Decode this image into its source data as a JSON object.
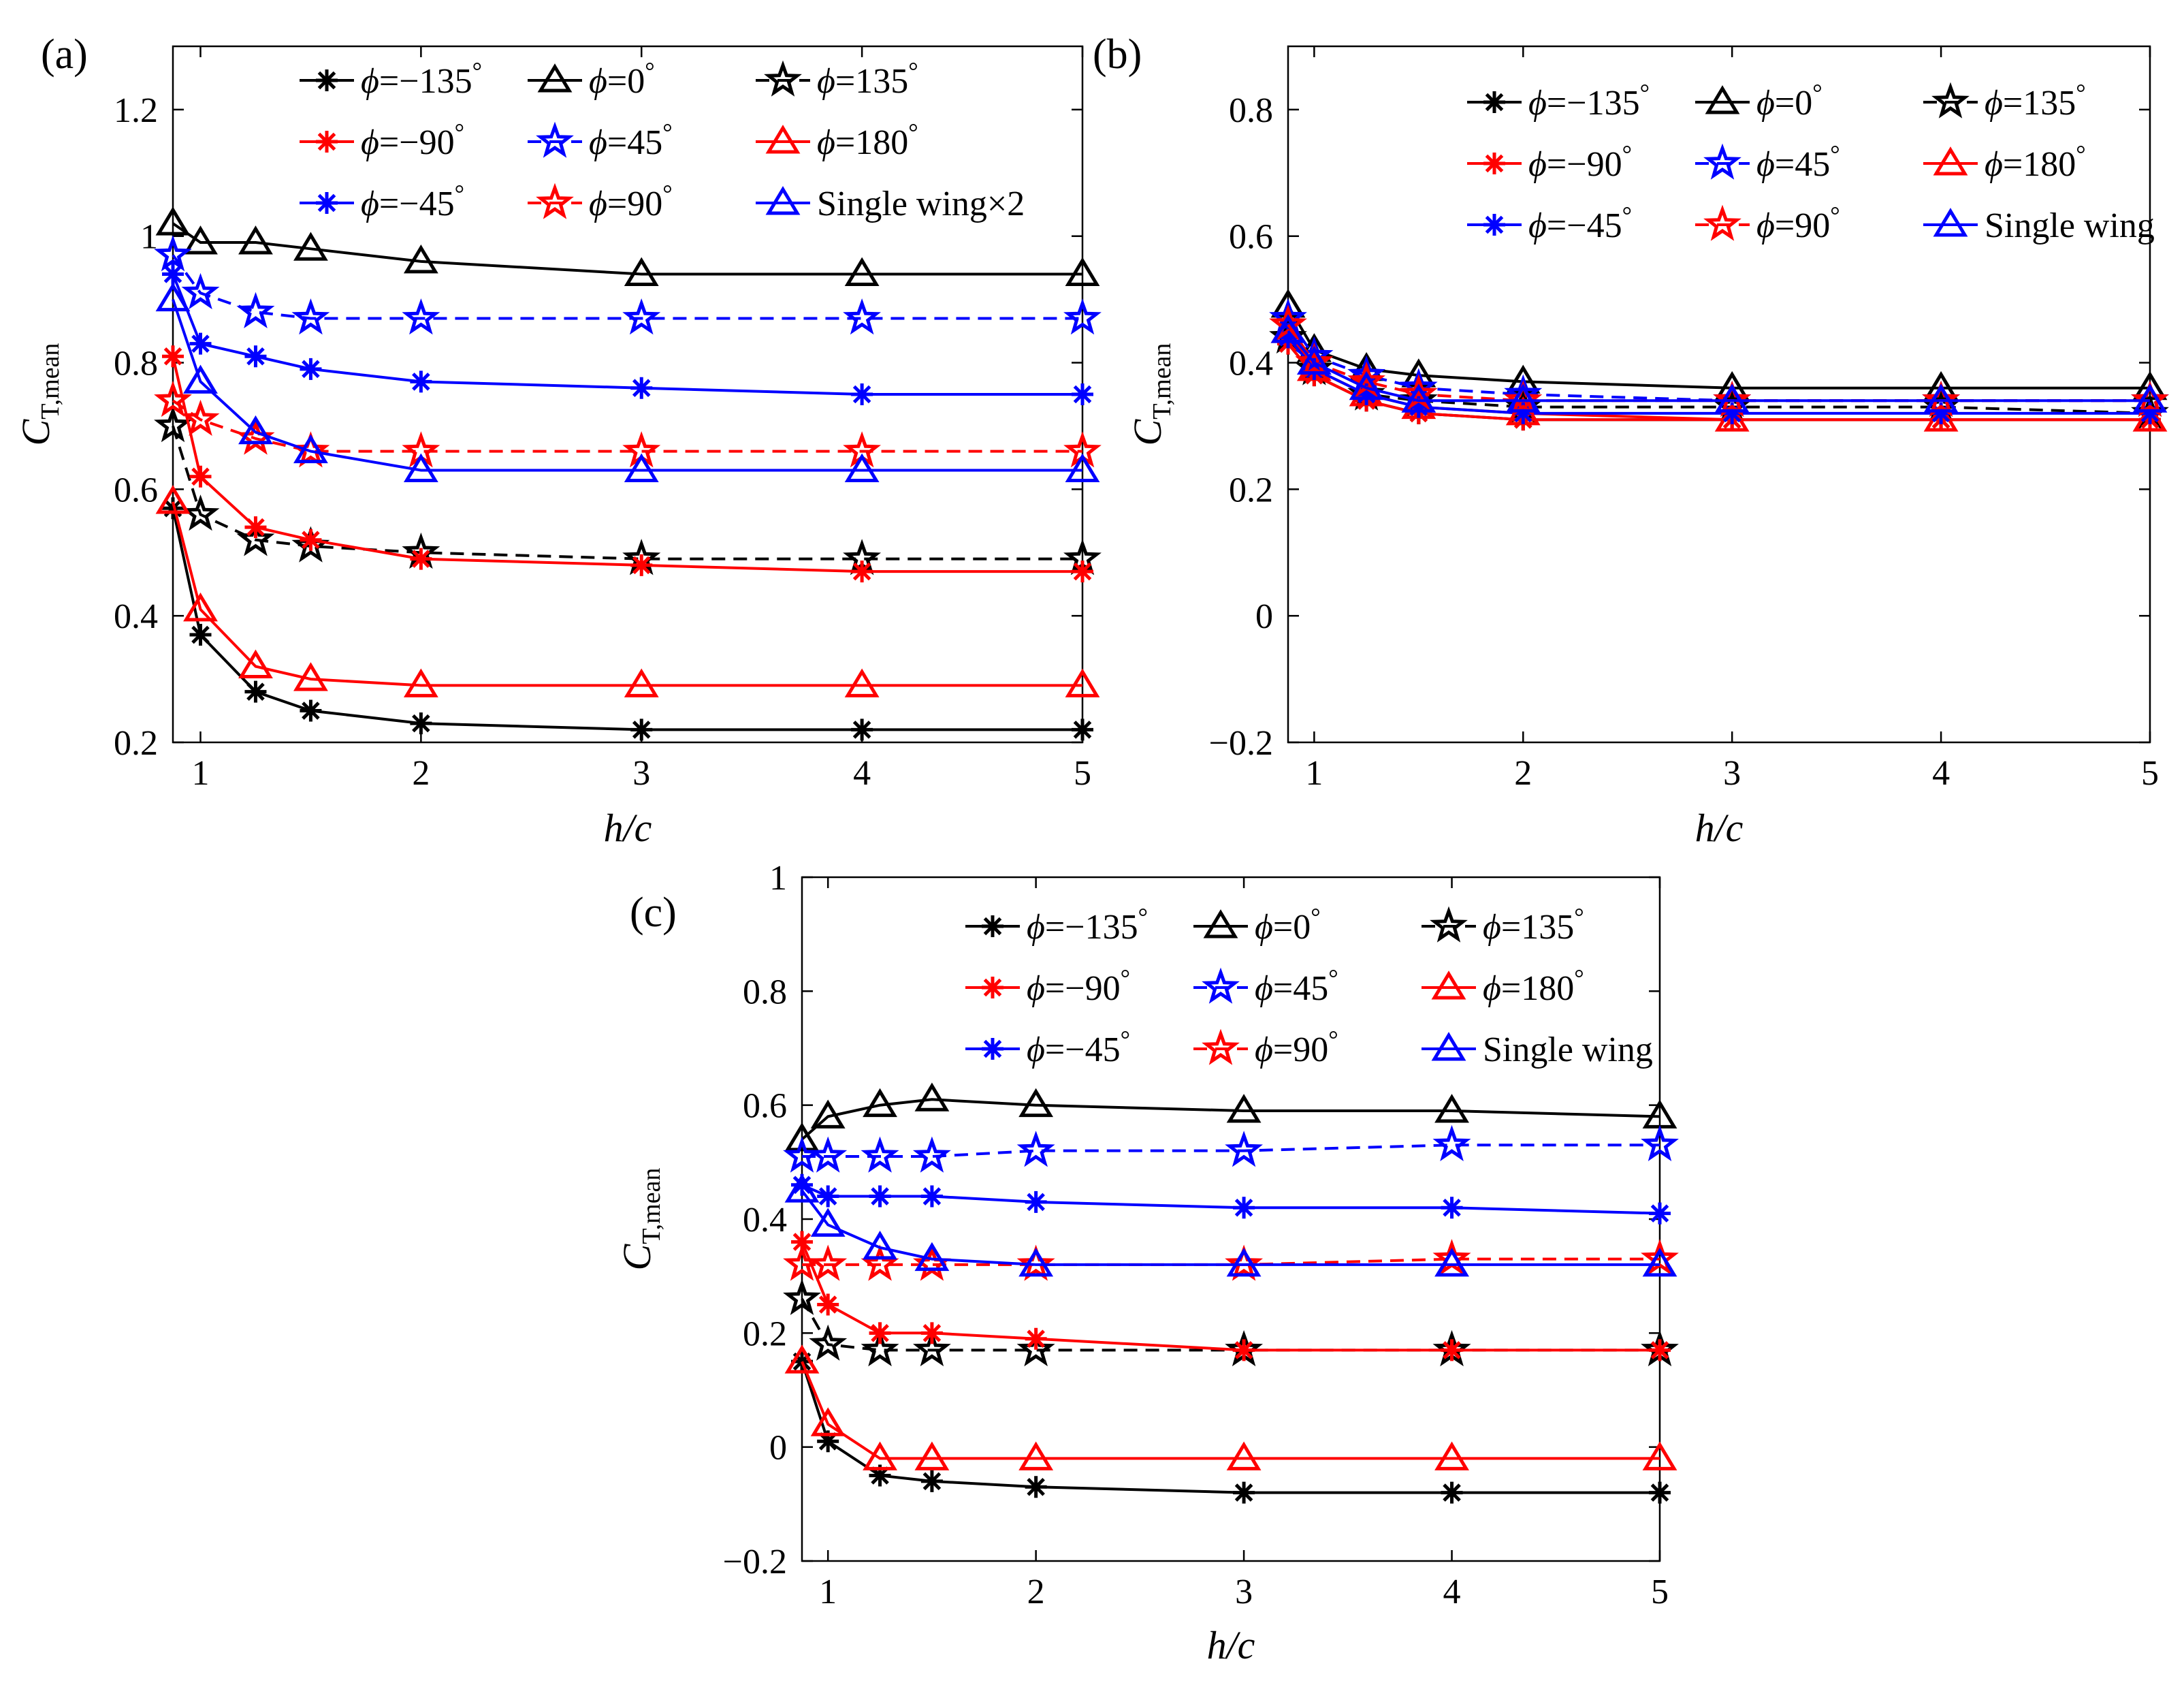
{
  "colors": {
    "black": "#000000",
    "red": "#ff0000",
    "blue": "#0000ff"
  },
  "series_styles": [
    {
      "name": "phi_m135",
      "color": "black",
      "marker": "asterisk",
      "dash": "solid"
    },
    {
      "name": "phi_0",
      "color": "black",
      "marker": "triangle",
      "dash": "solid"
    },
    {
      "name": "phi_135",
      "color": "black",
      "marker": "star",
      "dash": "dashed"
    },
    {
      "name": "phi_m90",
      "color": "red",
      "marker": "asterisk",
      "dash": "solid"
    },
    {
      "name": "phi_45",
      "color": "blue",
      "marker": "star",
      "dash": "dashed"
    },
    {
      "name": "phi_180",
      "color": "red",
      "marker": "triangle",
      "dash": "solid"
    },
    {
      "name": "phi_m45",
      "color": "blue",
      "marker": "asterisk",
      "dash": "solid"
    },
    {
      "name": "phi_90",
      "color": "red",
      "marker": "star",
      "dash": "dashed"
    },
    {
      "name": "single",
      "color": "blue",
      "marker": "triangle",
      "dash": "solid"
    }
  ],
  "legend_text": [
    {
      "prefix": "=−135",
      "deg": "°"
    },
    {
      "prefix": "=0",
      "deg": "°"
    },
    {
      "prefix": "=135",
      "deg": "°"
    },
    {
      "prefix": "=−90",
      "deg": "°"
    },
    {
      "prefix": "=45",
      "deg": "°"
    },
    {
      "prefix": "=180",
      "deg": "°"
    },
    {
      "prefix": "=−45",
      "deg": "°"
    },
    {
      "prefix": "=90",
      "deg": "°"
    }
  ],
  "phi_symbol": "ϕ",
  "chart_data": [
    {
      "type": "line",
      "panel_label": "(a)",
      "xlabel": "h/c",
      "ylabel_main": "C",
      "ylabel_sub": "T,mean",
      "xlim": [
        0.875,
        5
      ],
      "ylim": [
        0.2,
        1.3
      ],
      "xticks": [
        1,
        2,
        3,
        4,
        5
      ],
      "yticks": [
        0.2,
        0.4,
        0.6,
        0.8,
        1,
        1.2
      ],
      "ytick_labels": [
        "0.2",
        "0.4",
        "0.6",
        "0.8",
        "1",
        "1.2"
      ],
      "single_label": "Single wing×2",
      "x": [
        0.875,
        1,
        1.25,
        1.5,
        2,
        3,
        4,
        5
      ],
      "series": [
        {
          "name": "ϕ=−135°",
          "values": [
            0.57,
            0.37,
            0.28,
            0.25,
            0.23,
            0.22,
            0.22,
            0.22
          ]
        },
        {
          "name": "ϕ=0°",
          "values": [
            1.02,
            0.99,
            0.99,
            0.98,
            0.96,
            0.94,
            0.94,
            0.94
          ]
        },
        {
          "name": "ϕ=135°",
          "values": [
            0.7,
            0.56,
            0.52,
            0.51,
            0.5,
            0.49,
            0.49,
            0.49
          ]
        },
        {
          "name": "ϕ=−90°",
          "values": [
            0.81,
            0.62,
            0.54,
            0.52,
            0.49,
            0.48,
            0.47,
            0.47
          ]
        },
        {
          "name": "ϕ=45°",
          "values": [
            0.97,
            0.91,
            0.88,
            0.87,
            0.87,
            0.87,
            0.87,
            0.87
          ]
        },
        {
          "name": "ϕ=180°",
          "values": [
            0.58,
            0.41,
            0.32,
            0.3,
            0.29,
            0.29,
            0.29,
            0.29
          ]
        },
        {
          "name": "ϕ=−45°",
          "values": [
            0.94,
            0.83,
            0.81,
            0.79,
            0.77,
            0.76,
            0.75,
            0.75
          ]
        },
        {
          "name": "ϕ=90°",
          "values": [
            0.74,
            0.71,
            0.68,
            0.66,
            0.66,
            0.66,
            0.66,
            0.66
          ]
        },
        {
          "name": "Single wing×2",
          "values": [
            0.9,
            0.77,
            0.69,
            0.66,
            0.63,
            0.63,
            0.63,
            0.63
          ]
        }
      ]
    },
    {
      "type": "line",
      "panel_label": "(b)",
      "xlabel": "h/c",
      "ylabel_main": "C",
      "ylabel_sub": "T,mean",
      "xlim": [
        0.875,
        5
      ],
      "ylim": [
        -0.2,
        0.9
      ],
      "xticks": [
        1,
        2,
        3,
        4,
        5
      ],
      "yticks": [
        -0.2,
        0,
        0.2,
        0.4,
        0.6,
        0.8
      ],
      "ytick_labels": [
        "−0.2",
        "0",
        "0.2",
        "0.4",
        "0.6",
        "0.8"
      ],
      "single_label": "Single wing",
      "x": [
        0.875,
        1,
        1.25,
        1.5,
        2,
        3,
        4,
        5
      ],
      "series": [
        {
          "name": "ϕ=−135°",
          "values": [
            0.43,
            0.38,
            0.34,
            0.32,
            0.31,
            0.31,
            0.31,
            0.31
          ]
        },
        {
          "name": "ϕ=0°",
          "values": [
            0.49,
            0.42,
            0.39,
            0.38,
            0.37,
            0.36,
            0.36,
            0.36
          ]
        },
        {
          "name": "ϕ=135°",
          "values": [
            0.44,
            0.39,
            0.35,
            0.34,
            0.33,
            0.33,
            0.33,
            0.32
          ]
        },
        {
          "name": "ϕ=−90°",
          "values": [
            0.43,
            0.38,
            0.34,
            0.32,
            0.31,
            0.31,
            0.31,
            0.31
          ]
        },
        {
          "name": "ϕ=45°",
          "values": [
            0.47,
            0.41,
            0.38,
            0.36,
            0.35,
            0.34,
            0.34,
            0.34
          ]
        },
        {
          "name": "ϕ=180°",
          "values": [
            0.45,
            0.39,
            0.35,
            0.33,
            0.32,
            0.31,
            0.31,
            0.31
          ]
        },
        {
          "name": "ϕ=−45°",
          "values": [
            0.44,
            0.39,
            0.35,
            0.33,
            0.32,
            0.32,
            0.32,
            0.32
          ]
        },
        {
          "name": "ϕ=90°",
          "values": [
            0.46,
            0.4,
            0.37,
            0.35,
            0.34,
            0.34,
            0.34,
            0.34
          ]
        },
        {
          "name": "Single wing",
          "values": [
            0.45,
            0.4,
            0.36,
            0.34,
            0.34,
            0.34,
            0.34,
            0.34
          ]
        }
      ]
    },
    {
      "type": "line",
      "panel_label": "(c)",
      "xlabel": "h/c",
      "ylabel_main": "C",
      "ylabel_sub": "T,mean",
      "xlim": [
        0.875,
        5
      ],
      "ylim": [
        -0.2,
        1
      ],
      "xticks": [
        1,
        2,
        3,
        4,
        5
      ],
      "yticks": [
        -0.2,
        0,
        0.2,
        0.4,
        0.6,
        0.8,
        1
      ],
      "ytick_labels": [
        "−0.2",
        "0",
        "0.2",
        "0.4",
        "0.6",
        "0.8",
        "1"
      ],
      "single_label": "Single wing",
      "x": [
        0.875,
        1,
        1.25,
        1.5,
        2,
        3,
        4,
        5
      ],
      "series": [
        {
          "name": "ϕ=−135°",
          "values": [
            0.15,
            0.01,
            -0.05,
            -0.06,
            -0.07,
            -0.08,
            -0.08,
            -0.08
          ]
        },
        {
          "name": "ϕ=0°",
          "values": [
            0.54,
            0.58,
            0.6,
            0.61,
            0.6,
            0.59,
            0.59,
            0.58
          ]
        },
        {
          "name": "ϕ=135°",
          "values": [
            0.26,
            0.18,
            0.17,
            0.17,
            0.17,
            0.17,
            0.17,
            0.17
          ]
        },
        {
          "name": "ϕ=−90°",
          "values": [
            0.36,
            0.25,
            0.2,
            0.2,
            0.19,
            0.17,
            0.17,
            0.17
          ]
        },
        {
          "name": "ϕ=45°",
          "values": [
            0.51,
            0.51,
            0.51,
            0.51,
            0.52,
            0.52,
            0.53,
            0.53
          ]
        },
        {
          "name": "ϕ=180°",
          "values": [
            0.15,
            0.04,
            -0.02,
            -0.02,
            -0.02,
            -0.02,
            -0.02,
            -0.02
          ]
        },
        {
          "name": "ϕ=−45°",
          "values": [
            0.46,
            0.44,
            0.44,
            0.44,
            0.43,
            0.42,
            0.42,
            0.41
          ]
        },
        {
          "name": "ϕ=90°",
          "values": [
            0.32,
            0.32,
            0.32,
            0.32,
            0.32,
            0.32,
            0.33,
            0.33
          ]
        },
        {
          "name": "Single wing",
          "values": [
            0.45,
            0.39,
            0.35,
            0.33,
            0.32,
            0.32,
            0.32,
            0.32
          ]
        }
      ]
    }
  ]
}
